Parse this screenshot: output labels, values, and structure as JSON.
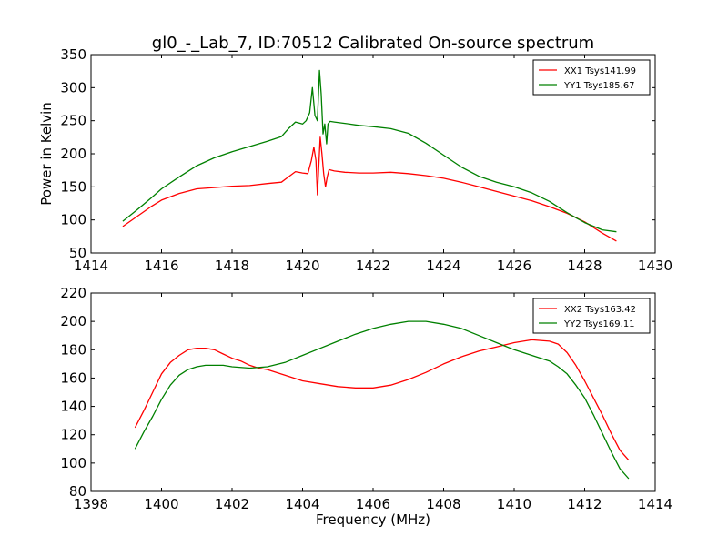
{
  "figure": {
    "title": "gl0_-_Lab_7, ID:70512 Calibrated On-source spectrum"
  },
  "colors": {
    "red": "#ff0000",
    "green": "#008000",
    "axis": "#000000",
    "background": "#ffffff"
  },
  "chart_data": [
    {
      "type": "line",
      "title": "gl0_-_Lab_7, ID:70512 Calibrated On-source spectrum",
      "xlabel": "",
      "ylabel": "Power in Kelvin",
      "xlim": [
        1414,
        1430
      ],
      "ylim": [
        50,
        350
      ],
      "xticks": [
        1414,
        1416,
        1418,
        1420,
        1422,
        1424,
        1426,
        1428,
        1430
      ],
      "yticks": [
        50,
        100,
        150,
        200,
        250,
        300,
        350
      ],
      "grid": false,
      "legend_position": "top-right",
      "series": [
        {
          "name": "XX1 Tsys141.99",
          "color": "#ff0000",
          "x": [
            1414.9,
            1415.3,
            1415.7,
            1416.0,
            1416.5,
            1417.0,
            1417.5,
            1418.0,
            1418.5,
            1419.0,
            1419.4,
            1419.6,
            1419.8,
            1420.0,
            1420.15,
            1420.25,
            1420.32,
            1420.38,
            1420.42,
            1420.46,
            1420.5,
            1420.55,
            1420.6,
            1420.65,
            1420.7,
            1420.75,
            1420.9,
            1421.2,
            1421.6,
            1422.0,
            1422.5,
            1423.0,
            1423.5,
            1424.0,
            1424.5,
            1425.0,
            1425.5,
            1426.0,
            1426.5,
            1427.0,
            1427.5,
            1428.0,
            1428.5,
            1428.9
          ],
          "y": [
            90,
            105,
            120,
            130,
            140,
            147,
            149,
            151,
            152,
            155,
            157,
            165,
            173,
            171,
            170,
            190,
            210,
            190,
            138,
            180,
            225,
            200,
            170,
            150,
            165,
            176,
            174,
            172,
            171,
            171,
            172,
            170,
            167,
            163,
            157,
            150,
            143,
            136,
            129,
            120,
            110,
            97,
            80,
            68
          ]
        },
        {
          "name": "YY1 Tsys185.67",
          "color": "#008000",
          "x": [
            1414.9,
            1415.3,
            1415.7,
            1416.0,
            1416.5,
            1417.0,
            1417.5,
            1418.0,
            1418.5,
            1419.0,
            1419.4,
            1419.6,
            1419.8,
            1420.0,
            1420.1,
            1420.2,
            1420.28,
            1420.35,
            1420.42,
            1420.48,
            1420.53,
            1420.58,
            1420.63,
            1420.68,
            1420.72,
            1420.78,
            1420.9,
            1421.2,
            1421.6,
            1422.0,
            1422.5,
            1423.0,
            1423.5,
            1424.0,
            1424.5,
            1425.0,
            1425.5,
            1426.0,
            1426.5,
            1427.0,
            1427.5,
            1428.0,
            1428.5,
            1428.9
          ],
          "y": [
            98,
            115,
            133,
            147,
            165,
            182,
            194,
            203,
            211,
            219,
            226,
            238,
            248,
            245,
            250,
            262,
            300,
            258,
            250,
            326,
            290,
            230,
            245,
            215,
            245,
            249,
            248,
            246,
            243,
            241,
            238,
            231,
            216,
            198,
            180,
            166,
            157,
            150,
            141,
            128,
            111,
            96,
            85,
            82
          ]
        }
      ]
    },
    {
      "type": "line",
      "title": "",
      "xlabel": "Frequency (MHz)",
      "ylabel": "",
      "xlim": [
        1398,
        1414
      ],
      "ylim": [
        80,
        220
      ],
      "xticks": [
        1398,
        1400,
        1402,
        1404,
        1406,
        1408,
        1410,
        1412,
        1414
      ],
      "yticks": [
        80,
        100,
        120,
        140,
        160,
        180,
        200,
        220
      ],
      "grid": false,
      "legend_position": "top-right",
      "series": [
        {
          "name": "XX2 Tsys163.42",
          "color": "#ff0000",
          "x": [
            1399.25,
            1399.5,
            1399.75,
            1400.0,
            1400.25,
            1400.5,
            1400.75,
            1401.0,
            1401.25,
            1401.5,
            1401.75,
            1402.0,
            1402.25,
            1402.5,
            1402.75,
            1403.0,
            1403.5,
            1404.0,
            1404.5,
            1405.0,
            1405.5,
            1406.0,
            1406.5,
            1407.0,
            1407.5,
            1408.0,
            1408.5,
            1409.0,
            1409.5,
            1410.0,
            1410.5,
            1411.0,
            1411.25,
            1411.5,
            1411.75,
            1412.0,
            1412.25,
            1412.5,
            1412.75,
            1413.0,
            1413.25
          ],
          "y": [
            125,
            137,
            150,
            163,
            171,
            176,
            180,
            181,
            181,
            180,
            177,
            174,
            172,
            169,
            167,
            166,
            162,
            158,
            156,
            154,
            153,
            153,
            155,
            159,
            164,
            170,
            175,
            179,
            182,
            185,
            187,
            186,
            184,
            178,
            169,
            158,
            146,
            134,
            121,
            109,
            102
          ]
        },
        {
          "name": "YY2 Tsys169.11",
          "color": "#008000",
          "x": [
            1399.25,
            1399.5,
            1399.75,
            1400.0,
            1400.25,
            1400.5,
            1400.75,
            1401.0,
            1401.25,
            1401.5,
            1401.75,
            1402.0,
            1402.5,
            1403.0,
            1403.5,
            1404.0,
            1404.5,
            1405.0,
            1405.5,
            1406.0,
            1406.5,
            1407.0,
            1407.5,
            1408.0,
            1408.5,
            1409.0,
            1409.5,
            1410.0,
            1410.5,
            1411.0,
            1411.25,
            1411.5,
            1411.75,
            1412.0,
            1412.25,
            1412.5,
            1412.75,
            1413.0,
            1413.25
          ],
          "y": [
            110,
            122,
            133,
            145,
            155,
            162,
            166,
            168,
            169,
            169,
            169,
            168,
            167,
            168,
            171,
            176,
            181,
            186,
            191,
            195,
            198,
            200,
            200,
            198,
            195,
            190,
            185,
            180,
            176,
            172,
            168,
            163,
            155,
            146,
            134,
            121,
            108,
            96,
            89
          ]
        }
      ]
    }
  ]
}
